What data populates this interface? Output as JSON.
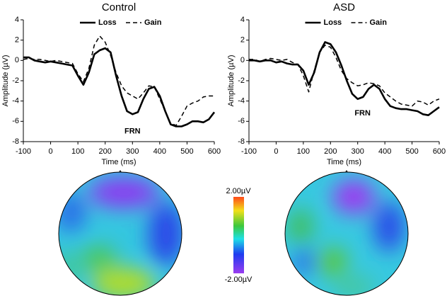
{
  "chart_data": [
    {
      "type": "line",
      "title": "Control",
      "xlabel": "Time (ms)",
      "ylabel": "Amplitude (µV)",
      "x": [
        -100,
        -80,
        -60,
        -40,
        -20,
        0,
        20,
        40,
        60,
        80,
        100,
        120,
        140,
        160,
        180,
        200,
        220,
        240,
        260,
        280,
        300,
        320,
        340,
        360,
        380,
        400,
        420,
        440,
        460,
        480,
        500,
        520,
        540,
        560,
        580,
        600
      ],
      "xlim": [
        -100,
        600
      ],
      "xticks": [
        -100,
        0,
        100,
        200,
        300,
        400,
        500,
        600
      ],
      "ylim": [
        -8,
        4
      ],
      "yticks": [
        4,
        2,
        0,
        -2,
        -4,
        -6,
        -8
      ],
      "legend": "top",
      "annotation": "FRN",
      "series": [
        {
          "name": "Loss",
          "color": "#000000",
          "linestyle": "solid",
          "linewidth": 2.6,
          "values": [
            0.3,
            0.3,
            0,
            -0.1,
            -0.2,
            -0.1,
            -0.2,
            -0.3,
            -0.4,
            -0.5,
            -1.5,
            -2.4,
            -1.2,
            0.6,
            1.0,
            1.2,
            0.8,
            -1.5,
            -3.5,
            -5,
            -5.3,
            -5.1,
            -3.8,
            -2.8,
            -2.6,
            -3.5,
            -5,
            -6.3,
            -6.5,
            -6.5,
            -6.3,
            -6,
            -6,
            -6.1,
            -5.8,
            -5.1
          ]
        },
        {
          "name": "Gain",
          "color": "#000000",
          "linestyle": "dashed",
          "linewidth": 1.5,
          "values": [
            0.1,
            0.2,
            0.1,
            0.1,
            0,
            -0.1,
            0,
            -0.1,
            -0.2,
            -0.3,
            -1.3,
            -2.1,
            -0.8,
            1.5,
            2.4,
            1.8,
            0.5,
            -1.2,
            -2.5,
            -3.2,
            -3.5,
            -3.8,
            -3.2,
            -2.5,
            -2.6,
            -3.8,
            -5,
            -6.2,
            -6.4,
            -5.5,
            -4.5,
            -4.2,
            -4,
            -3.6,
            -3.5,
            -3.5
          ]
        }
      ]
    },
    {
      "type": "line",
      "title": "ASD",
      "xlabel": "Time (ms)",
      "ylabel": "Amplitude (µV)",
      "x": [
        -100,
        -80,
        -60,
        -40,
        -20,
        0,
        20,
        40,
        60,
        80,
        100,
        120,
        140,
        160,
        180,
        200,
        220,
        240,
        260,
        280,
        300,
        320,
        340,
        360,
        380,
        400,
        420,
        440,
        460,
        480,
        500,
        520,
        540,
        560,
        580,
        600
      ],
      "xlim": [
        -100,
        600
      ],
      "xticks": [
        -100,
        0,
        100,
        200,
        300,
        400,
        500,
        600
      ],
      "ylim": [
        -8,
        4
      ],
      "yticks": [
        4,
        2,
        0,
        -2,
        -4,
        -6,
        -8
      ],
      "legend": "top",
      "annotation": "FRN",
      "series": [
        {
          "name": "Loss",
          "color": "#000000",
          "linestyle": "solid",
          "linewidth": 2.6,
          "values": [
            0,
            0,
            -0.1,
            0,
            0,
            -0.2,
            -0.1,
            -0.3,
            -0.4,
            -0.4,
            -1.0,
            -2.4,
            -1.2,
            0.8,
            1.8,
            1.6,
            0.8,
            -0.5,
            -2,
            -3.3,
            -3.8,
            -3.6,
            -2.8,
            -2.4,
            -2.8,
            -3.8,
            -4.5,
            -4.7,
            -4.8,
            -4.8,
            -4.9,
            -5,
            -5.3,
            -5.4,
            -5,
            -4.6
          ]
        },
        {
          "name": "Gain",
          "color": "#000000",
          "linestyle": "dashed",
          "linewidth": 1.5,
          "values": [
            0.1,
            0.1,
            -0.1,
            0.1,
            0.2,
            0.1,
            0,
            0.1,
            -0.2,
            -0.4,
            -1.5,
            -3.1,
            -1.0,
            0.8,
            1.5,
            1.3,
            0.3,
            -1.0,
            -1.8,
            -2.2,
            -2.5,
            -2.4,
            -2.2,
            -2.3,
            -2.5,
            -3.2,
            -3.6,
            -4.0,
            -4.3,
            -4.4,
            -4.5,
            -4.0,
            -4.1,
            -4.4,
            -4.0,
            -3.8
          ]
        }
      ]
    }
  ],
  "colorbar": {
    "max_label": "2.00µV",
    "min_label": "-2.00µV"
  }
}
